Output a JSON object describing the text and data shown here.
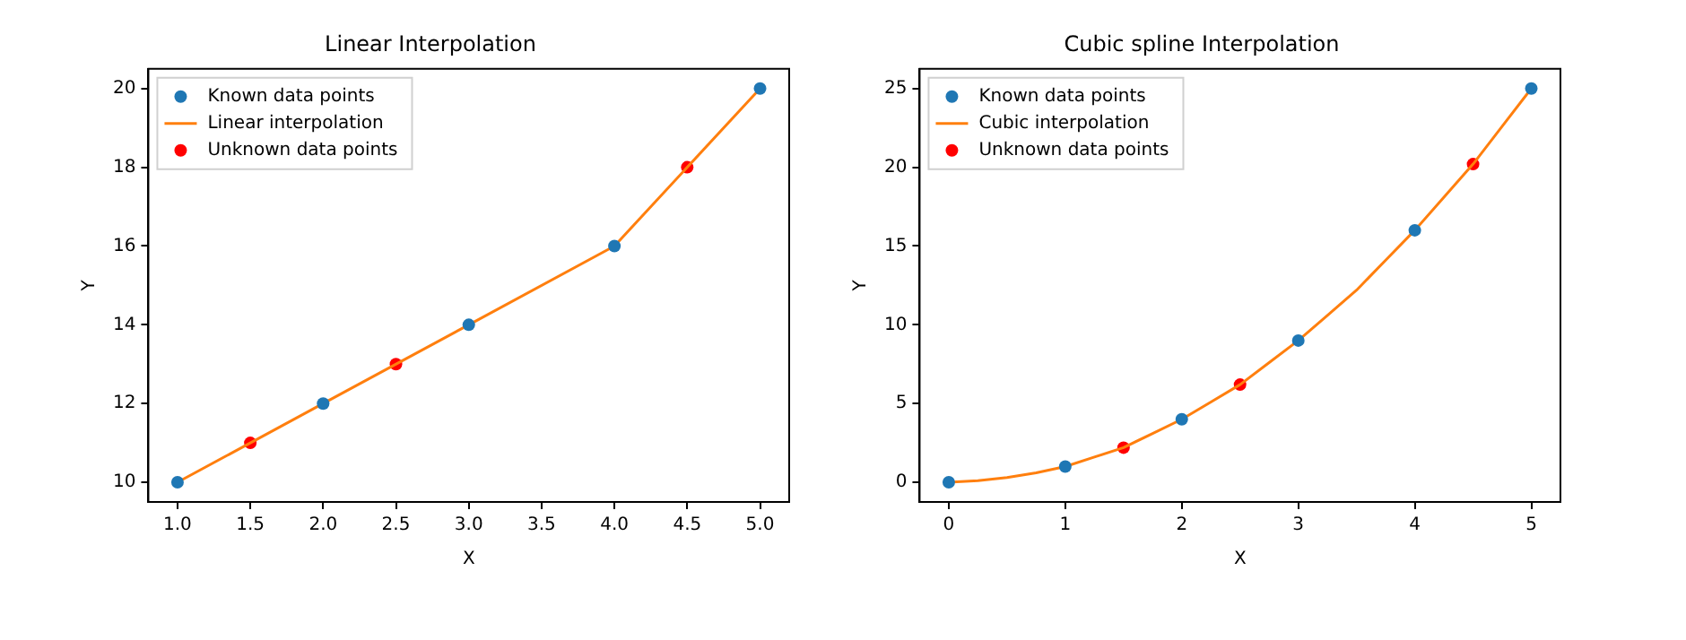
{
  "chart_data": [
    {
      "type": "scatter",
      "title": "Linear Interpolation",
      "xlabel": "X",
      "ylabel": "Y",
      "legend": "top left",
      "grid": false,
      "xlim": [
        0.8,
        5.2
      ],
      "xticks": [
        {
          "value": 1,
          "label": "1.0"
        },
        {
          "value": 1.5,
          "label": "1.5"
        },
        {
          "value": 2,
          "label": "2.0"
        },
        {
          "value": 2.5,
          "label": "2.5"
        },
        {
          "value": 3,
          "label": "3.0"
        },
        {
          "value": 3.5,
          "label": "3.5"
        },
        {
          "value": 4,
          "label": "4.0"
        },
        {
          "value": 4.5,
          "label": "4.5"
        },
        {
          "value": 5,
          "label": "5.0"
        }
      ],
      "ylim": [
        9.5,
        20.5
      ],
      "yticks": [
        10,
        12,
        14,
        16,
        18,
        20
      ],
      "series": [
        {
          "name": "Known data points",
          "type": "scatter",
          "marker": "circle",
          "color": "#1f77b4",
          "x": [
            1,
            2,
            3,
            4,
            5
          ],
          "values": [
            10,
            12,
            14,
            16,
            20
          ]
        },
        {
          "name": "Linear interpolation",
          "type": "line",
          "marker": "none",
          "line_style": "solid",
          "color": "#ff7f0e",
          "x": [
            1,
            2,
            3,
            4,
            5
          ],
          "values": [
            10,
            12,
            14,
            16,
            20
          ]
        },
        {
          "name": "Unknown data points",
          "type": "scatter",
          "marker": "circle",
          "color": "#ff0000",
          "x": [
            1.5,
            2.5,
            4.5
          ],
          "values": [
            11,
            13,
            18
          ]
        }
      ]
    },
    {
      "type": "scatter",
      "title": "Cubic spline Interpolation",
      "xlabel": "X",
      "ylabel": "Y",
      "legend": "top left",
      "grid": false,
      "xlim": [
        -0.25,
        5.25
      ],
      "xticks": [
        0,
        1,
        2,
        3,
        4,
        5
      ],
      "ylim": [
        -1.25,
        26.25
      ],
      "yticks": [
        0,
        5,
        10,
        15,
        20,
        25
      ],
      "series": [
        {
          "name": "Known data points",
          "type": "scatter",
          "marker": "circle",
          "color": "#1f77b4",
          "x": [
            0,
            1,
            2,
            3,
            4,
            5
          ],
          "values": [
            0,
            1,
            4,
            9,
            16,
            25
          ]
        },
        {
          "name": "Cubic interpolation",
          "type": "line",
          "marker": "none",
          "line_style": "solid",
          "color": "#ff7f0e",
          "x": [
            0,
            0.25,
            0.5,
            0.75,
            1,
            1.25,
            1.5,
            1.75,
            2,
            2.25,
            2.5,
            2.75,
            3,
            3.25,
            3.5,
            3.75,
            4,
            4.25,
            4.5,
            4.75,
            5
          ],
          "values": [
            0,
            0.1,
            0.3,
            0.6,
            1,
            1.6,
            2.2,
            3.1,
            4,
            5.1,
            6.2,
            7.6,
            9,
            10.6,
            12.2,
            14.1,
            16,
            18.1,
            20.2,
            22.6,
            25
          ]
        },
        {
          "name": "Unknown data points",
          "type": "scatter",
          "marker": "circle",
          "color": "#ff0000",
          "x": [
            1.5,
            2.5,
            4.5
          ],
          "values": [
            2.2,
            6.2,
            20.2
          ]
        }
      ]
    }
  ]
}
